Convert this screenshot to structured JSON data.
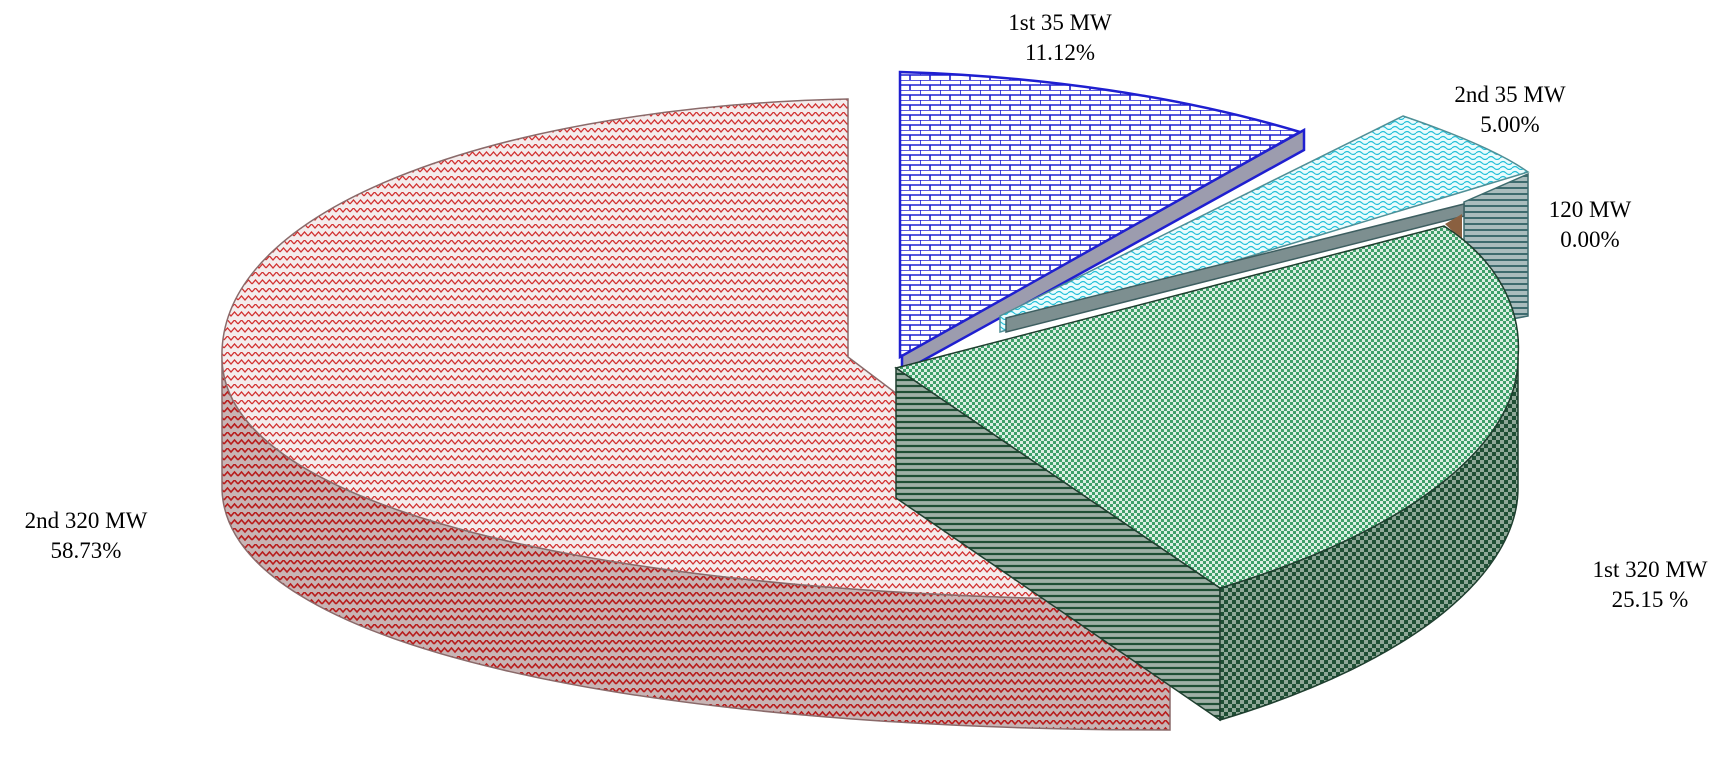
{
  "chart_data": {
    "type": "pie",
    "style": "3d-exploded",
    "title": "",
    "slices": [
      {
        "label": "1st 35 MW",
        "value_text": "11.12%",
        "value": 11.12,
        "color": "#1f1fd0",
        "pattern": "brick"
      },
      {
        "label": "2nd 35 MW",
        "value_text": "5.00%",
        "value": 5.0,
        "color": "#2ec8dc",
        "pattern": "wave"
      },
      {
        "label": "120 MW",
        "value_text": "0.00%",
        "value": 0.0,
        "color": "#3d6b6e",
        "pattern": "horizontal-lines"
      },
      {
        "label": "1st 320 MW",
        "value_text": "25.15 %",
        "value": 25.15,
        "color": "#2e8b57",
        "pattern": "checker"
      },
      {
        "label": "2nd 320 MW",
        "value_text": "58.73%",
        "value": 58.73,
        "color": "#d42a2a",
        "pattern": "zigzag"
      }
    ]
  }
}
